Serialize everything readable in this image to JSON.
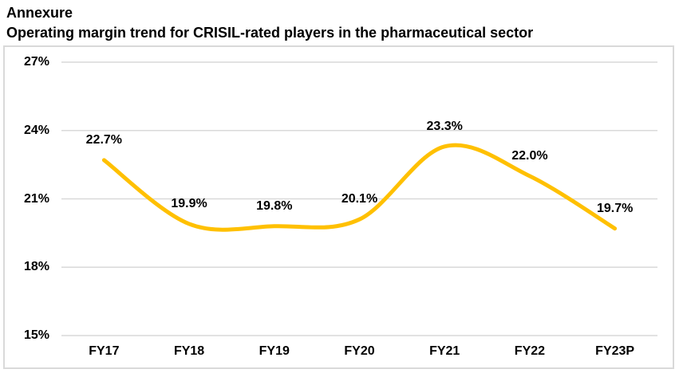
{
  "page": {
    "heading": "Annexure",
    "subheading": "Operating margin trend for CRISIL-rated players in the pharmaceutical sector"
  },
  "chart_data": {
    "type": "line",
    "title": "Operating margin trend for CRISIL-rated players in the pharmaceutical sector",
    "categories": [
      "FY17",
      "FY18",
      "FY19",
      "FY20",
      "FY21",
      "FY22",
      "FY23P"
    ],
    "values": [
      22.7,
      19.9,
      19.8,
      20.1,
      23.3,
      22.0,
      19.7
    ],
    "point_labels": [
      "22.7%",
      "19.9%",
      "19.8%",
      "20.1%",
      "23.3%",
      "22.0%",
      "19.7%"
    ],
    "y_ticks": [
      {
        "value": 27,
        "label": "27%"
      },
      {
        "value": 24,
        "label": "24%"
      },
      {
        "value": 21,
        "label": "21%"
      },
      {
        "value": 18,
        "label": "18%"
      },
      {
        "value": 15,
        "label": "15%"
      }
    ],
    "ylim": [
      15,
      27
    ],
    "xlabel": "",
    "ylabel": "",
    "grid": true,
    "legend_position": "none",
    "line_smooth": true,
    "colors": {
      "line": "#FFC000",
      "gridline": "#D9D9D9",
      "plot_border": "#D9D9D9",
      "text": "#000000"
    }
  }
}
